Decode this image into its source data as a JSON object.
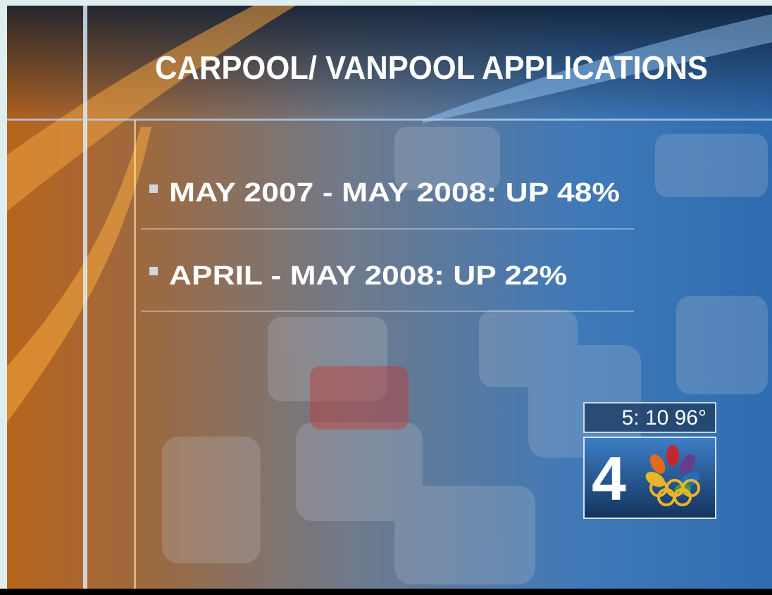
{
  "header": {
    "title": "CARPOOL/ VANPOOL APPLICATIONS"
  },
  "bullets": [
    "MAY 2007 - MAY 2008: UP 48%",
    "APRIL - MAY 2008: UP 22%"
  ],
  "bug": {
    "time_temp": "5: 10 96°",
    "channel": "4"
  }
}
